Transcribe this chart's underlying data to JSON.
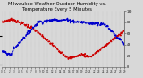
{
  "title": "Milwaukee Weather Outdoor Humidity vs. Temperature Every 5 Minutes",
  "title_fontsize": 3.8,
  "line_color_temp": "#cc0000",
  "line_color_humid": "#0000cc",
  "background_color": "#d8d8d8",
  "plot_bg": "#d8d8d8",
  "grid_color": "#aaaaaa",
  "ylim_temp": [
    -5,
    95
  ],
  "ylim_humid": [
    0,
    100
  ],
  "n_points": 288,
  "right_yticks": [
    0,
    20,
    40,
    60,
    80,
    100
  ],
  "n_xticks": 30
}
